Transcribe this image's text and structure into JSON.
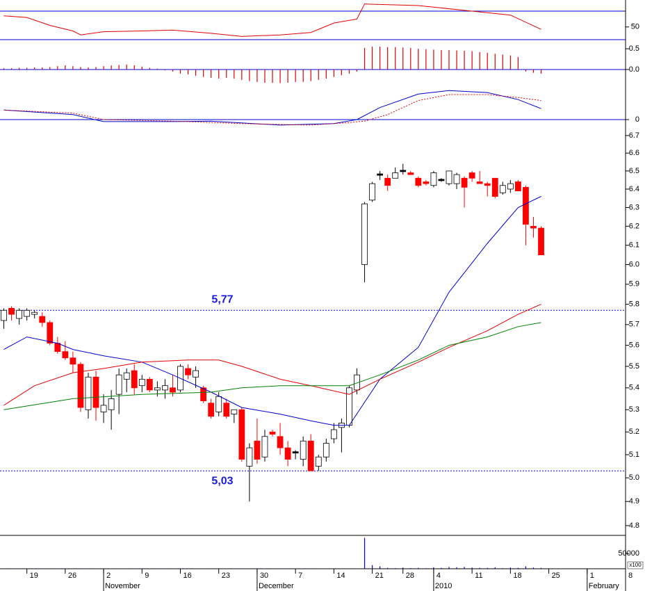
{
  "chart_data": [
    {
      "type": "line",
      "ylim": [
        34,
        84
      ],
      "yticks": [
        50
      ],
      "refline": 70,
      "refline_color": "#0000cc",
      "series": [
        {
          "color": "#e00000",
          "x": [
            0,
            3,
            6,
            9,
            10,
            13,
            18,
            22,
            27,
            31,
            36,
            40,
            43,
            46,
            47,
            54,
            61,
            66,
            70
          ],
          "values": [
            64,
            62,
            52,
            45,
            40,
            44,
            45,
            46,
            42,
            38,
            40,
            43,
            55,
            60,
            79,
            77,
            70,
            65,
            47
          ]
        }
      ]
    },
    {
      "type": "bar",
      "color": "#e00000",
      "ylim": [
        -0.42,
        0.72
      ],
      "yticks": [
        {
          "value": 0.5,
          "label": "0.5"
        },
        {
          "value": 0,
          "label": "0.0"
        }
      ],
      "zero_color": "#0000cc",
      "values": [
        0.03,
        0.03,
        0.04,
        0.04,
        0.05,
        0.05,
        0.06,
        0.08,
        0.1,
        0.08,
        0.06,
        0.05,
        0.06,
        0.08,
        0.1,
        0.11,
        0.12,
        0.1,
        0.07,
        0.04,
        0.02,
        -0.02,
        -0.05,
        -0.1,
        -0.12,
        -0.15,
        -0.18,
        -0.2,
        -0.22,
        -0.2,
        -0.22,
        -0.25,
        -0.28,
        -0.3,
        -0.32,
        -0.32,
        -0.33,
        -0.32,
        -0.3,
        -0.3,
        -0.28,
        -0.25,
        -0.22,
        -0.18,
        -0.14,
        -0.1,
        -0.05,
        0.52,
        0.55,
        0.55,
        0.54,
        0.54,
        0.53,
        0.52,
        0.5,
        0.49,
        0.48,
        0.47,
        0.47,
        0.46,
        0.45,
        0.44,
        0.42,
        0.4,
        0.38,
        0.36,
        0.34,
        0.3,
        -0.05,
        -0.08,
        -0.1
      ]
    },
    {
      "type": "line",
      "ylim": [
        -0.25,
        1.0
      ],
      "yticks": [
        0
      ],
      "zero_color": "#0000cc",
      "series": [
        {
          "color": "#0000cc",
          "x": [
            0,
            9,
            13,
            22,
            27,
            36,
            43,
            46,
            49,
            54,
            58,
            63,
            67,
            70
          ],
          "values": [
            0.19,
            0.1,
            -0.04,
            -0.04,
            -0.03,
            -0.11,
            -0.08,
            0,
            0.24,
            0.51,
            0.58,
            0.54,
            0.4,
            0.22
          ]
        },
        {
          "color": "#e00000",
          "dash": true,
          "x": [
            0,
            9,
            13,
            22,
            31,
            40,
            45,
            47,
            50,
            54,
            58,
            63,
            67,
            70
          ],
          "values": [
            0.19,
            0.13,
            0,
            -0.03,
            -0.08,
            -0.11,
            -0.06,
            -0.03,
            0.1,
            0.38,
            0.5,
            0.5,
            0.44,
            0.38
          ]
        }
      ]
    },
    {
      "type": "candlestick",
      "log": true,
      "ylim": [
        4.76,
        6.8
      ],
      "xlim": [
        -0.5,
        81
      ],
      "yticks": [
        6.7,
        6.6,
        6.5,
        6.4,
        6.3,
        6.2,
        6.1,
        {
          "value": 6,
          "label": "6.0"
        },
        5.9,
        5.8,
        5.7,
        5.6,
        5.5,
        5.4,
        5.3,
        5.2,
        5.1,
        {
          "value": 5,
          "label": "5.0"
        },
        4.9,
        4.8
      ],
      "up_color": "#ffffff",
      "down_color": "#ff0000",
      "flat_color": "#000000",
      "open": [
        5.72,
        5.78,
        5.73,
        5.74,
        5.75,
        5.74,
        5.71,
        5.61,
        5.57,
        5.54,
        5.51,
        5.3,
        5.45,
        5.29,
        5.3,
        5.37,
        5.44,
        5.48,
        5.41,
        5.44,
        5.39,
        5.39,
        5.4,
        5.39,
        5.49,
        5.45,
        5.4,
        5.33,
        5.29,
        5.33,
        5.28,
        5.3,
        5.05,
        5.16,
        5.09,
        5.2,
        5.18,
        5.13,
        5.11,
        5.08,
        5.16,
        5.05,
        5.09,
        5.17,
        5.22,
        5.23,
        5.39,
        6.0,
        6.34,
        6.48,
        6.46,
        6.46,
        6.5,
        6.49,
        6.46,
        6.44,
        6.42,
        6.45,
        6.43,
        6.43,
        6.46,
        6.49,
        6.44,
        6.43,
        6.46,
        6.38,
        6.4,
        6.44,
        6.41,
        6.2,
        6.19
      ],
      "high": [
        5.78,
        5.79,
        5.78,
        5.78,
        5.77,
        5.76,
        5.72,
        5.64,
        5.62,
        5.57,
        5.52,
        5.47,
        5.48,
        5.37,
        5.39,
        5.49,
        5.49,
        5.51,
        5.46,
        5.45,
        5.43,
        5.44,
        5.46,
        5.51,
        5.51,
        5.5,
        5.41,
        5.35,
        5.38,
        5.35,
        5.3,
        5.31,
        5.15,
        5.26,
        5.21,
        5.21,
        5.24,
        5.16,
        5.12,
        5.18,
        5.19,
        5.1,
        5.17,
        5.24,
        5.26,
        5.41,
        5.49,
        6.33,
        6.44,
        6.5,
        6.48,
        6.52,
        6.54,
        6.5,
        6.47,
        6.45,
        6.5,
        6.46,
        6.5,
        6.49,
        6.47,
        6.5,
        6.5,
        6.44,
        6.46,
        6.44,
        6.45,
        6.45,
        6.42,
        6.25,
        6.2
      ],
      "low": [
        5.68,
        5.72,
        5.7,
        5.72,
        5.73,
        5.69,
        5.6,
        5.56,
        5.53,
        5.47,
        5.29,
        5.26,
        5.25,
        5.24,
        5.21,
        5.28,
        5.38,
        5.37,
        5.38,
        5.38,
        5.36,
        5.35,
        5.36,
        5.38,
        5.44,
        5.4,
        5.33,
        5.26,
        5.27,
        5.26,
        5.24,
        5.07,
        4.9,
        5.06,
        5.07,
        5.18,
        5.1,
        5.05,
        5.08,
        5.05,
        5.03,
        5.03,
        5.07,
        5.15,
        5.11,
        5.22,
        5.37,
        5.91,
        6.33,
        6.45,
        6.39,
        6.46,
        6.48,
        6.48,
        6.41,
        6.42,
        6.41,
        6.44,
        6.42,
        6.4,
        6.3,
        6.44,
        6.43,
        6.36,
        6.35,
        6.37,
        6.38,
        6.39,
        6.1,
        6.14,
        6.05
      ],
      "close": [
        5.77,
        5.75,
        5.77,
        5.77,
        5.76,
        5.71,
        5.61,
        5.57,
        5.54,
        5.51,
        5.31,
        5.45,
        5.31,
        5.32,
        5.35,
        5.46,
        5.47,
        5.4,
        5.44,
        5.39,
        5.4,
        5.41,
        5.38,
        5.5,
        5.46,
        5.48,
        5.34,
        5.27,
        5.36,
        5.27,
        5.3,
        5.08,
        5.13,
        5.08,
        5.18,
        5.19,
        5.13,
        5.08,
        5.11,
        5.16,
        5.03,
        5.09,
        5.15,
        5.21,
        5.24,
        5.4,
        5.46,
        6.32,
        6.43,
        6.48,
        6.42,
        6.49,
        6.5,
        6.48,
        6.42,
        6.43,
        6.49,
        6.45,
        6.5,
        6.48,
        6.41,
        6.46,
        6.43,
        6.42,
        6.36,
        6.42,
        6.43,
        6.39,
        6.21,
        6.19,
        6.05
      ],
      "series": [
        {
          "color": "#0000cc",
          "x": [
            0,
            3,
            7,
            9,
            13,
            18,
            22,
            27,
            31,
            36,
            40,
            43,
            45,
            49,
            54,
            58,
            63,
            67,
            70
          ],
          "values": [
            5.58,
            5.64,
            5.61,
            5.58,
            5.55,
            5.52,
            5.46,
            5.38,
            5.31,
            5.28,
            5.25,
            5.23,
            5.23,
            5.44,
            5.59,
            5.86,
            6.11,
            6.3,
            6.36
          ]
        },
        {
          "color": "#e00000",
          "x": [
            0,
            4,
            9,
            13,
            18,
            24,
            28,
            31,
            36,
            40,
            45,
            49,
            54,
            58,
            63,
            67,
            70
          ],
          "values": [
            5.32,
            5.41,
            5.47,
            5.49,
            5.52,
            5.53,
            5.53,
            5.5,
            5.44,
            5.41,
            5.37,
            5.44,
            5.52,
            5.59,
            5.67,
            5.75,
            5.8
          ]
        },
        {
          "color": "#008000",
          "x": [
            0,
            9,
            18,
            27,
            31,
            36,
            45,
            49,
            54,
            58,
            63,
            67,
            70
          ],
          "values": [
            5.3,
            5.35,
            5.37,
            5.38,
            5.4,
            5.41,
            5.41,
            5.46,
            5.53,
            5.6,
            5.64,
            5.69,
            5.71
          ]
        }
      ],
      "hlines": [
        {
          "value": 5.77,
          "label": "5,77",
          "color": "#0000cc"
        },
        {
          "value": 5.03,
          "label": "5,03",
          "color": "#0000cc"
        }
      ]
    },
    {
      "type": "bar",
      "color": "#0000cc",
      "ylim": [
        0,
        110000
      ],
      "yticks": [
        50000
      ],
      "unit_label": "x100",
      "values": [
        1000,
        1000,
        1000,
        1000,
        1000,
        1000,
        1000,
        1000,
        1000,
        1000,
        1000,
        1000,
        1000,
        1000,
        1000,
        1000,
        1000,
        1000,
        1000,
        1000,
        1000,
        1000,
        1000,
        1000,
        1000,
        1000,
        1000,
        1000,
        1000,
        1000,
        1000,
        1000,
        1000,
        1000,
        1000,
        1000,
        1000,
        1000,
        1000,
        1000,
        1000,
        1000,
        1000,
        1000,
        1000,
        1000,
        1000,
        102000,
        12000,
        8000,
        3000,
        2000,
        4000,
        2000,
        3000,
        2000,
        5000,
        3000,
        6000,
        5000,
        6000,
        4000,
        3000,
        3000,
        5000,
        2000,
        4000,
        3000,
        8000,
        4000,
        3000
      ],
      "xticks": [
        {
          "value": 3,
          "label": "19"
        },
        {
          "value": 8,
          "label": "26"
        },
        {
          "value": 13,
          "label": "2"
        },
        {
          "value": 18,
          "label": "9"
        },
        {
          "value": 23,
          "label": "16"
        },
        {
          "value": 28,
          "label": "23"
        },
        {
          "value": 33,
          "label": "30"
        },
        {
          "value": 38,
          "label": "7"
        },
        {
          "value": 43,
          "label": "14"
        },
        {
          "value": 48,
          "label": "21"
        },
        {
          "value": 52,
          "label": "28"
        },
        {
          "value": 56,
          "label": "4"
        },
        {
          "value": 61,
          "label": "11"
        },
        {
          "value": 66,
          "label": "18"
        },
        {
          "value": 71,
          "label": "25"
        },
        {
          "value": 76,
          "label": "1"
        },
        {
          "value": 81,
          "label": "8"
        }
      ],
      "month_labels": [
        {
          "value": 13,
          "label": "November"
        },
        {
          "value": 33,
          "label": "December"
        },
        {
          "value": 56,
          "label": "2010"
        },
        {
          "value": 76,
          "label": "February"
        }
      ]
    }
  ]
}
